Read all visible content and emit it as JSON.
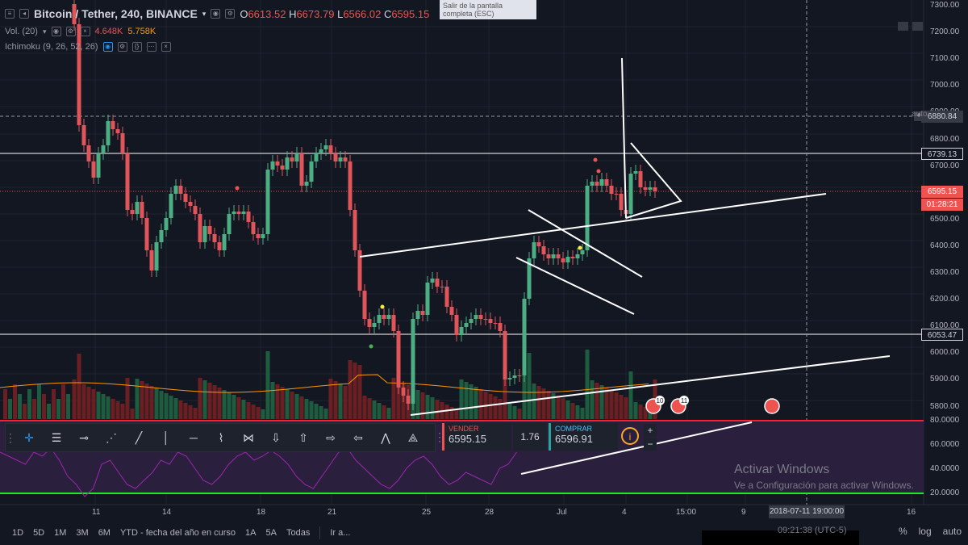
{
  "header": {
    "symbol": "Bitcoin / Tether, 240, BINANCE",
    "open_label": "O",
    "open": "6613.52",
    "high_label": "H",
    "high": "6673.79",
    "low_label": "L",
    "low": "6566.02",
    "close_label": "C",
    "close": "6595.15"
  },
  "volume_indicator": {
    "label": "Vol. (20)",
    "v1": "4.648K",
    "v2": "5.758K"
  },
  "ichimoku_indicator": {
    "label": "Ichimoku (9, 26, 52, 26)"
  },
  "tooltip": {
    "text": "Salir de la pantalla completa (ESC)"
  },
  "price_axis": {
    "ticks": [
      "7300.00",
      "7200.00",
      "7100.00",
      "7000.00",
      "6900.00",
      "6800.00",
      "6700.00",
      "6600.00",
      "6500.00",
      "6400.00",
      "6300.00",
      "6200.00",
      "6100.00",
      "6000.00",
      "5900.00",
      "5800.00"
    ],
    "rsi_ticks": [
      "80.0000",
      "60.0000",
      "40.0000",
      "20.0000"
    ],
    "labels": {
      "crosshair": "6880.84",
      "resistance": "6739.13",
      "current": "6595.15",
      "countdown": "01:28:21",
      "support": "6053.47"
    },
    "auto": "auto"
  },
  "time_axis": {
    "ticks": [
      "11",
      "14",
      "18",
      "21",
      "25",
      "28",
      "Jul",
      "4",
      "15:00",
      "9",
      "16"
    ],
    "crosshair": "2018-07-11 19:00:00"
  },
  "trade_panel": {
    "sell_label": "VENDER",
    "sell_price": "6595.15",
    "spread": "1.76",
    "buy_label": "COMPRAR",
    "buy_price": "6596.91",
    "plus": "+",
    "minus": "−"
  },
  "events": {
    "e1": "10",
    "e2": "11"
  },
  "bottom_bar": {
    "ranges": [
      "1D",
      "5D",
      "1M",
      "3M",
      "6M",
      "YTD - fecha del año en curso",
      "1A",
      "5A",
      "Todas"
    ],
    "goto": "Ir a...",
    "clock": "09:21:38 (UTC-5)",
    "percent": "%",
    "log": "log",
    "auto": "auto"
  },
  "watermark": {
    "line1": "Activar Windows",
    "line2": "Ve a Configuración para activar Windows."
  },
  "colors": {
    "bg": "#131722",
    "up": "#4caf84",
    "down": "#e0545a",
    "rsi_bg": "#2a1f3d",
    "rsi_line": "#9c27b0",
    "rsi_upper": "#ff1e2c",
    "rsi_lower": "#1ee82c"
  }
}
